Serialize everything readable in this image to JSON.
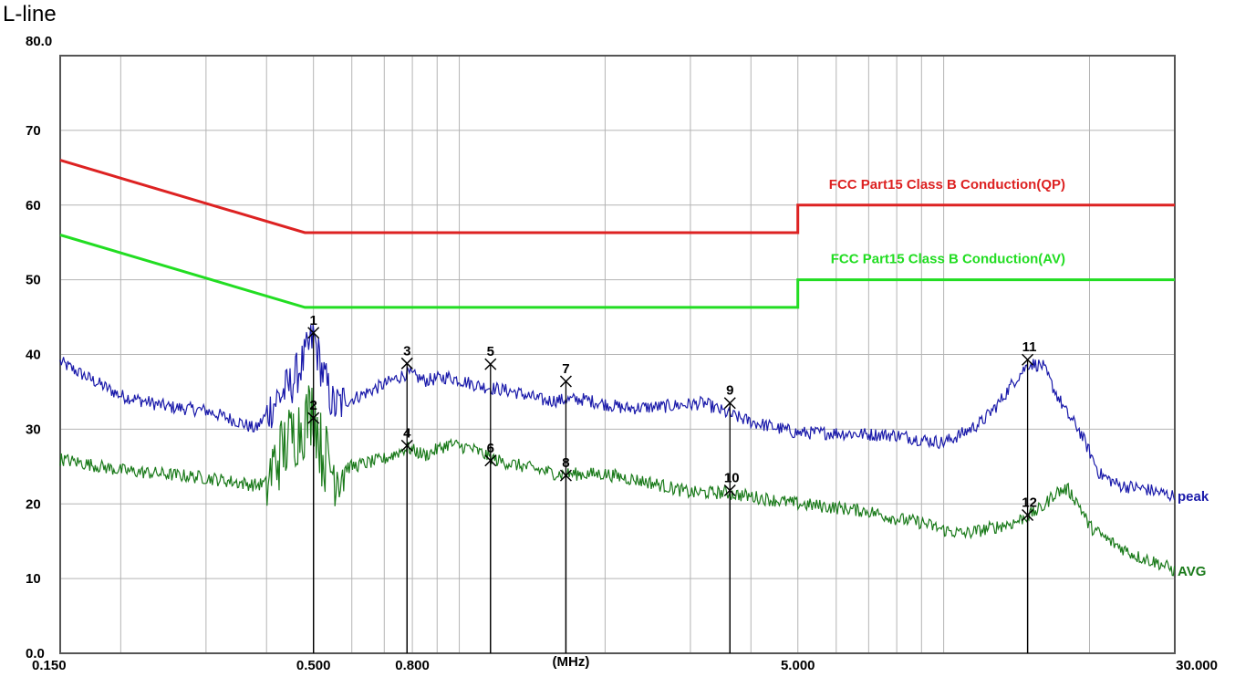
{
  "title": "L-line",
  "chart_data": {
    "type": "line",
    "x_scale": "log",
    "xlim": [
      0.15,
      30
    ],
    "ylim": [
      0,
      80
    ],
    "grid": true,
    "x_ticks": [
      {
        "value": 0.15,
        "label": "0.150"
      },
      {
        "value": 0.5,
        "label": "0.500"
      },
      {
        "value": 0.8,
        "label": "0.800"
      },
      {
        "value": 5,
        "label": "5.000"
      },
      {
        "value": 30,
        "label": "30.000"
      }
    ],
    "x_unit_label": "(MHz)",
    "x_unit_pos": 1.7,
    "y_ticks": [
      {
        "value": 80,
        "label": "80.0"
      },
      {
        "value": 70,
        "label": "70"
      },
      {
        "value": 60,
        "label": "60"
      },
      {
        "value": 50,
        "label": "50"
      },
      {
        "value": 40,
        "label": "40"
      },
      {
        "value": 30,
        "label": "30"
      },
      {
        "value": 20,
        "label": "20"
      },
      {
        "value": 10,
        "label": "10"
      },
      {
        "value": 0,
        "label": "0.0"
      }
    ],
    "limits": [
      {
        "name": "FCC Part15 Class B Conduction(QP)",
        "color": "#dd2222",
        "points": [
          [
            0.15,
            66
          ],
          [
            0.48,
            56.3
          ],
          [
            5,
            56.3
          ],
          [
            5,
            60
          ],
          [
            30,
            60
          ]
        ]
      },
      {
        "name": "FCC Part15 Class B Conduction(AV)",
        "color": "#22dd22",
        "points": [
          [
            0.15,
            56
          ],
          [
            0.48,
            46.3
          ],
          [
            5,
            46.3
          ],
          [
            5,
            50
          ],
          [
            30,
            50
          ]
        ]
      }
    ],
    "series": [
      {
        "name": "peak",
        "color": "#1a1aaa",
        "points": [
          [
            0.15,
            39
          ],
          [
            0.17,
            37
          ],
          [
            0.2,
            34.5
          ],
          [
            0.25,
            33
          ],
          [
            0.3,
            32.5
          ],
          [
            0.35,
            31
          ],
          [
            0.38,
            30
          ],
          [
            0.4,
            32
          ],
          [
            0.42,
            34
          ],
          [
            0.45,
            36
          ],
          [
            0.48,
            39.5
          ],
          [
            0.5,
            42.5
          ],
          [
            0.52,
            38
          ],
          [
            0.55,
            33
          ],
          [
            0.6,
            34
          ],
          [
            0.7,
            36
          ],
          [
            0.78,
            37.5
          ],
          [
            0.85,
            36.5
          ],
          [
            0.95,
            37
          ],
          [
            1.1,
            35.8
          ],
          [
            1.3,
            35
          ],
          [
            1.5,
            33.8
          ],
          [
            1.8,
            34
          ],
          [
            2.2,
            32.8
          ],
          [
            2.6,
            33
          ],
          [
            3.2,
            33.5
          ],
          [
            3.6,
            32
          ],
          [
            4,
            31
          ],
          [
            5,
            29.5
          ],
          [
            6,
            29.5
          ],
          [
            7,
            29.3
          ],
          [
            8,
            29.2
          ],
          [
            9,
            28.6
          ],
          [
            10,
            28.2
          ],
          [
            11,
            29.5
          ],
          [
            12,
            31
          ],
          [
            13,
            33.5
          ],
          [
            14,
            36.5
          ],
          [
            15,
            38.8
          ],
          [
            16,
            38.5
          ],
          [
            17,
            35
          ],
          [
            18,
            32
          ],
          [
            19,
            30
          ],
          [
            20,
            27
          ],
          [
            21,
            24
          ],
          [
            23,
            22.5
          ],
          [
            26,
            22
          ],
          [
            30,
            21
          ]
        ]
      },
      {
        "name": "AVG",
        "color": "#1a7a1a",
        "points": [
          [
            0.15,
            26
          ],
          [
            0.2,
            24.5
          ],
          [
            0.3,
            23.5
          ],
          [
            0.38,
            22.5
          ],
          [
            0.4,
            22.8
          ],
          [
            0.42,
            26
          ],
          [
            0.45,
            29
          ],
          [
            0.48,
            31
          ],
          [
            0.5,
            33
          ],
          [
            0.52,
            27
          ],
          [
            0.55,
            24.5
          ],
          [
            0.6,
            25
          ],
          [
            0.7,
            26
          ],
          [
            0.78,
            27.5
          ],
          [
            0.85,
            26.5
          ],
          [
            0.95,
            28
          ],
          [
            1.05,
            27.5
          ],
          [
            1.2,
            25.8
          ],
          [
            1.4,
            24.8
          ],
          [
            1.6,
            24
          ],
          [
            2,
            24
          ],
          [
            2.5,
            22.8
          ],
          [
            3,
            21.5
          ],
          [
            3.5,
            21.5
          ],
          [
            4,
            21
          ],
          [
            5,
            20
          ],
          [
            6,
            19.5
          ],
          [
            7,
            19
          ],
          [
            8,
            18
          ],
          [
            9,
            17.5
          ],
          [
            10,
            16.5
          ],
          [
            11,
            16
          ],
          [
            12,
            16.5
          ],
          [
            14,
            17.5
          ],
          [
            15,
            18.5
          ],
          [
            16,
            19.5
          ],
          [
            17,
            21.5
          ],
          [
            18,
            22
          ],
          [
            19,
            20
          ],
          [
            20,
            17
          ],
          [
            22,
            15
          ],
          [
            25,
            13
          ],
          [
            28,
            12
          ],
          [
            30,
            11
          ]
        ]
      }
    ],
    "markers": [
      {
        "label": "1",
        "x": 0.5,
        "y": 42.9
      },
      {
        "label": "2",
        "x": 0.5,
        "y": 31.5
      },
      {
        "label": "3",
        "x": 0.78,
        "y": 38.8
      },
      {
        "label": "4",
        "x": 0.78,
        "y": 27.8
      },
      {
        "label": "5",
        "x": 1.16,
        "y": 38.7
      },
      {
        "label": "6",
        "x": 1.16,
        "y": 25.8
      },
      {
        "label": "7",
        "x": 1.66,
        "y": 36.4
      },
      {
        "label": "8",
        "x": 1.66,
        "y": 23.8
      },
      {
        "label": "9",
        "x": 3.62,
        "y": 33.5
      },
      {
        "label": "10",
        "x": 3.62,
        "y": 21.8
      },
      {
        "label": "11",
        "x": 14.9,
        "y": 39.3
      },
      {
        "label": "12",
        "x": 14.9,
        "y": 18.5
      }
    ]
  }
}
